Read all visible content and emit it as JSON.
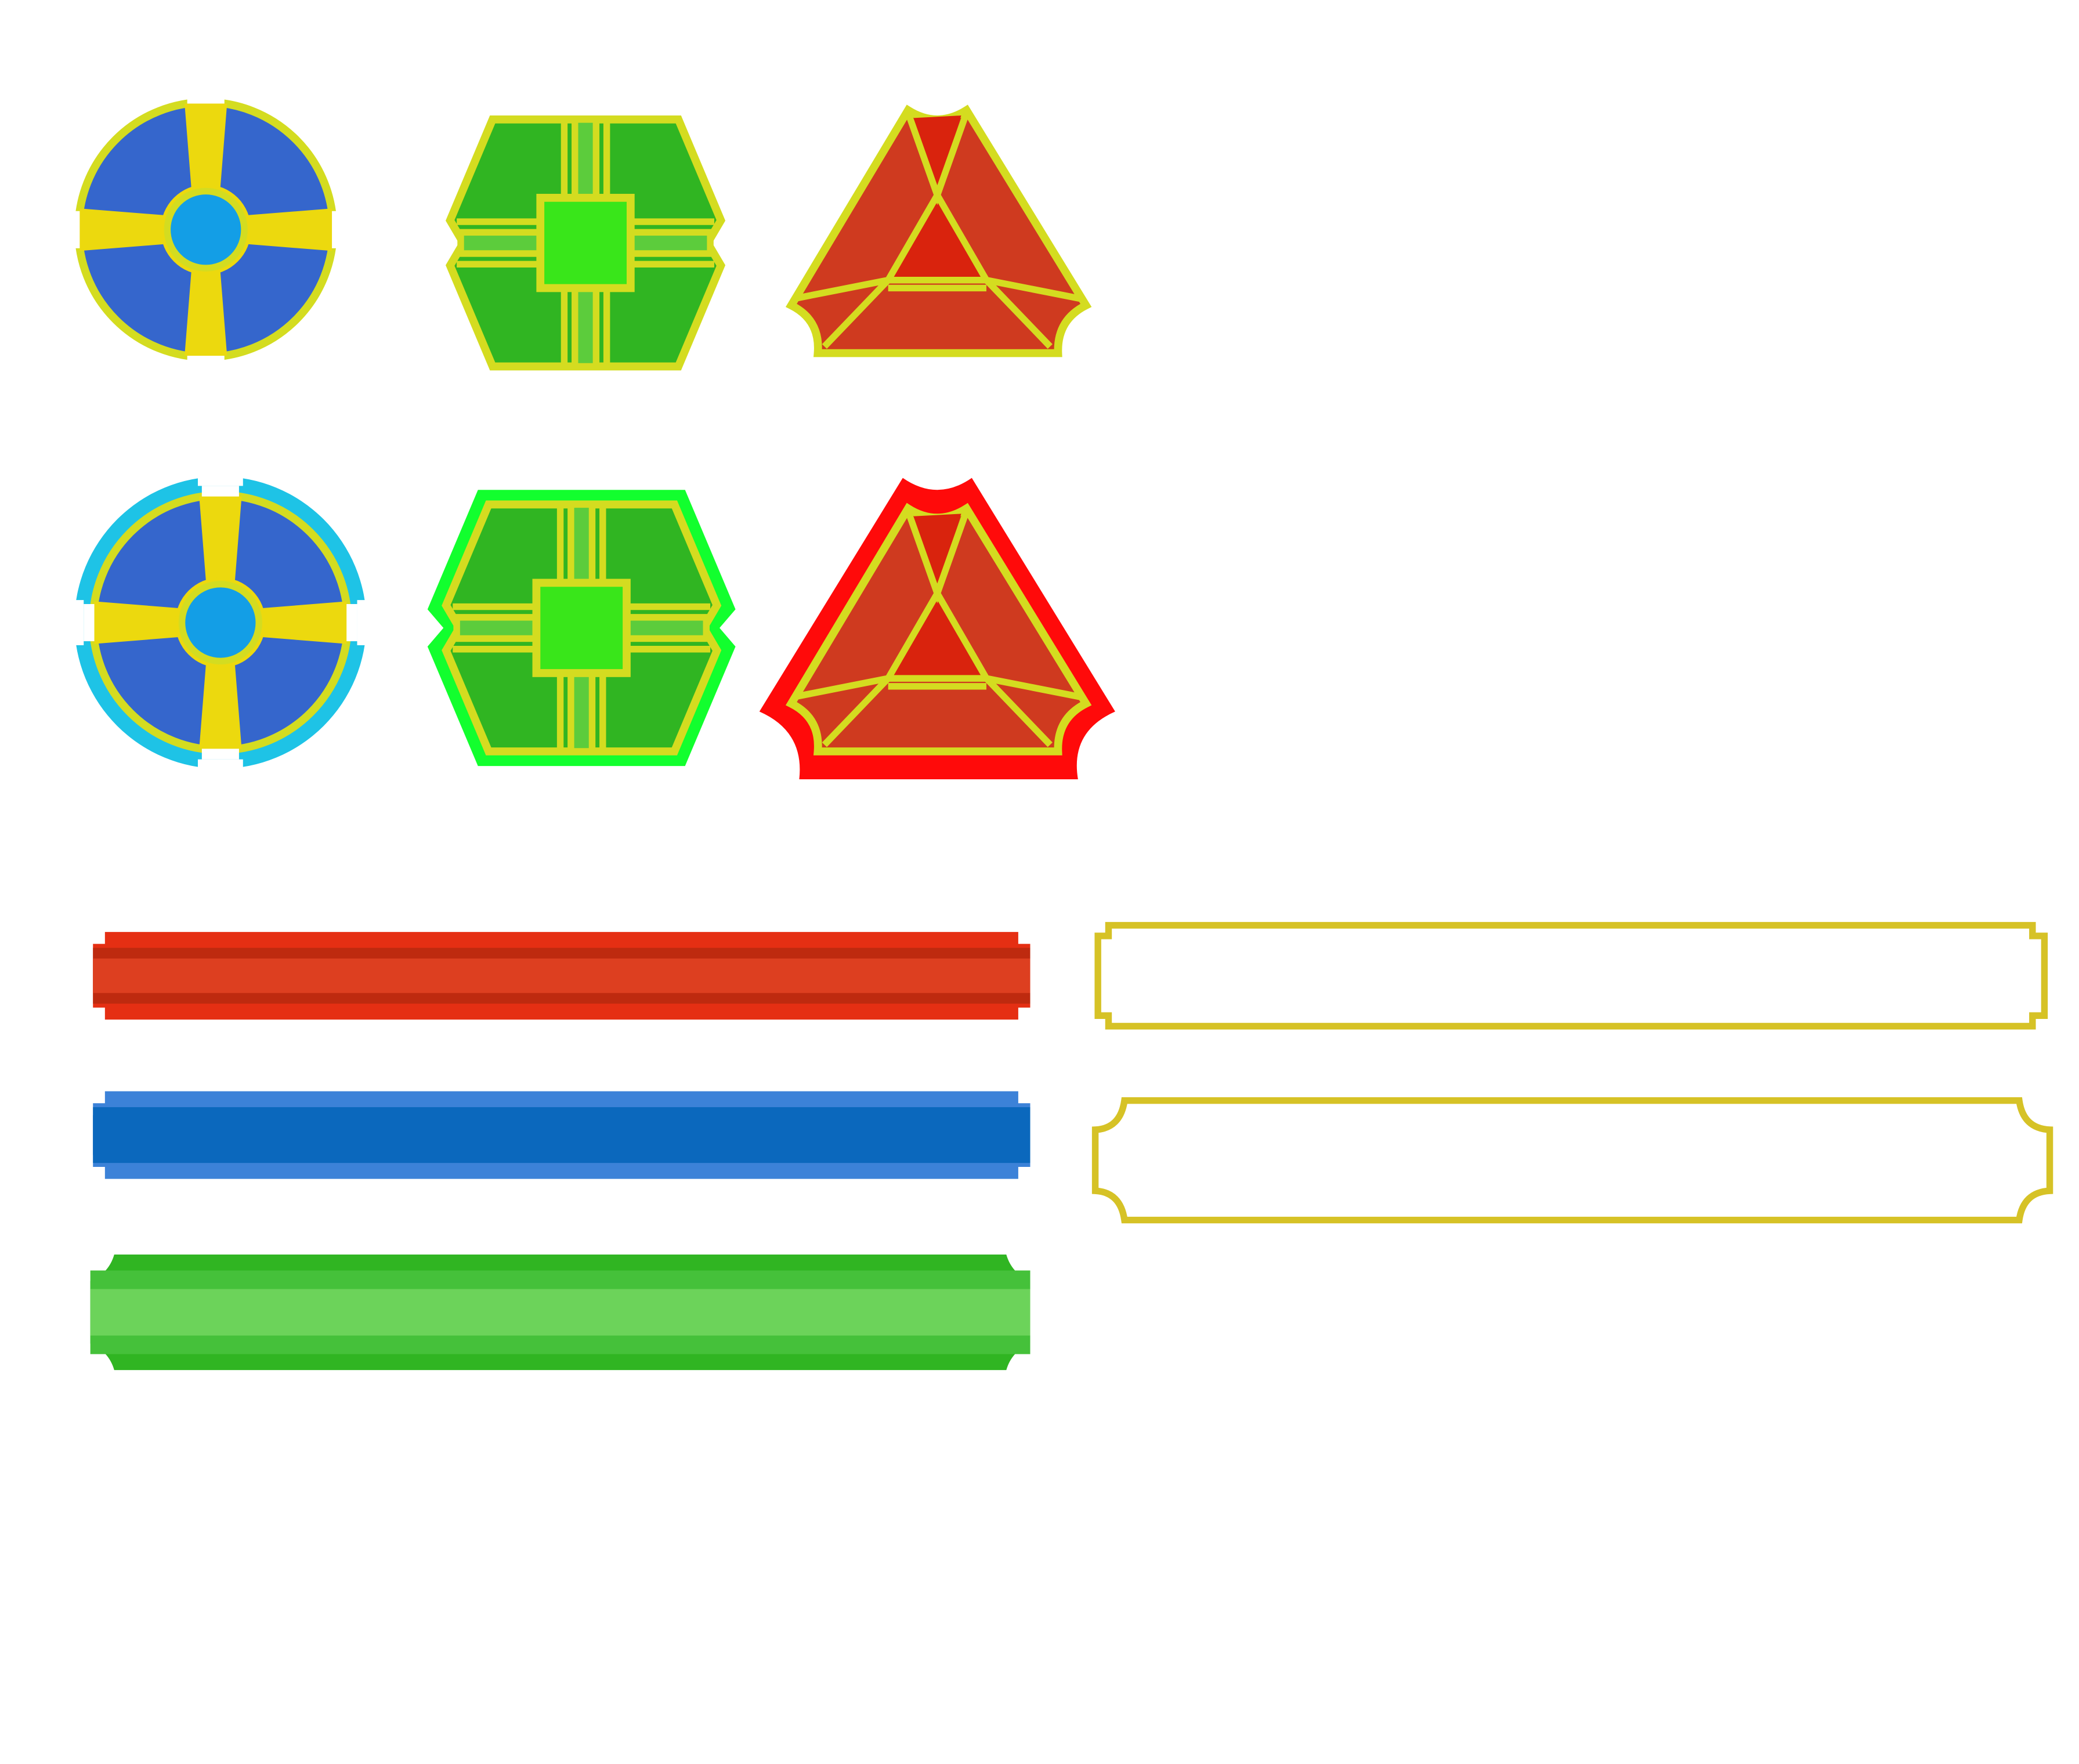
{
  "sheet": {
    "background": "#ffffff"
  },
  "colors": {
    "outline_yellow": "#d4dc20",
    "cross_yellow": "#ecd90e",
    "shield_blue": "#3566cc",
    "center_blue": "#139ee6",
    "selected_cyan": "#1ec3e6",
    "hex_green": "#30b522",
    "hex_center_green": "#39e61a",
    "hex_bar_green": "#5ccc3c",
    "selected_green": "#12ff2e",
    "tri_red": "#cf3a1f",
    "tri_inner_red": "#d9230d",
    "selected_red": "#ff0a0a",
    "bar_frame_gold": "#d6c226"
  },
  "badges": [
    {
      "id": "round-shield",
      "shape": "circle",
      "fill": "shield_blue",
      "state": "normal"
    },
    {
      "id": "hex-crate",
      "shape": "hexagon",
      "fill": "hex_green",
      "state": "normal"
    },
    {
      "id": "triangle-gem",
      "shape": "triangle",
      "fill": "tri_red",
      "state": "normal"
    },
    {
      "id": "round-shield",
      "shape": "circle",
      "fill": "shield_blue",
      "state": "selected",
      "highlight": "selected_cyan"
    },
    {
      "id": "hex-crate",
      "shape": "hexagon",
      "fill": "hex_green",
      "state": "selected",
      "highlight": "selected_green"
    },
    {
      "id": "triangle-gem",
      "shape": "triangle",
      "fill": "tri_red",
      "state": "selected",
      "highlight": "selected_red"
    }
  ],
  "bars": [
    {
      "id": "red-bar",
      "style": "filled",
      "fill": 1.0,
      "colors": [
        "#e52f13",
        "#be2a0f",
        "#dd3f20"
      ]
    },
    {
      "id": "blue-bar",
      "style": "filled",
      "fill": 1.0,
      "colors": [
        "#3c82d8",
        "#0b68bd",
        "#2c79d4"
      ]
    },
    {
      "id": "green-bar",
      "style": "filled",
      "fill": 1.0,
      "colors": [
        "#30b522",
        "#45c13a",
        "#6cd35a"
      ]
    },
    {
      "id": "frame-notched",
      "style": "empty-frame",
      "fill": 0.0,
      "colors": [
        "#d6c226"
      ]
    },
    {
      "id": "frame-rounded",
      "style": "empty-frame",
      "fill": 0.0,
      "colors": [
        "#d6c226"
      ]
    }
  ]
}
